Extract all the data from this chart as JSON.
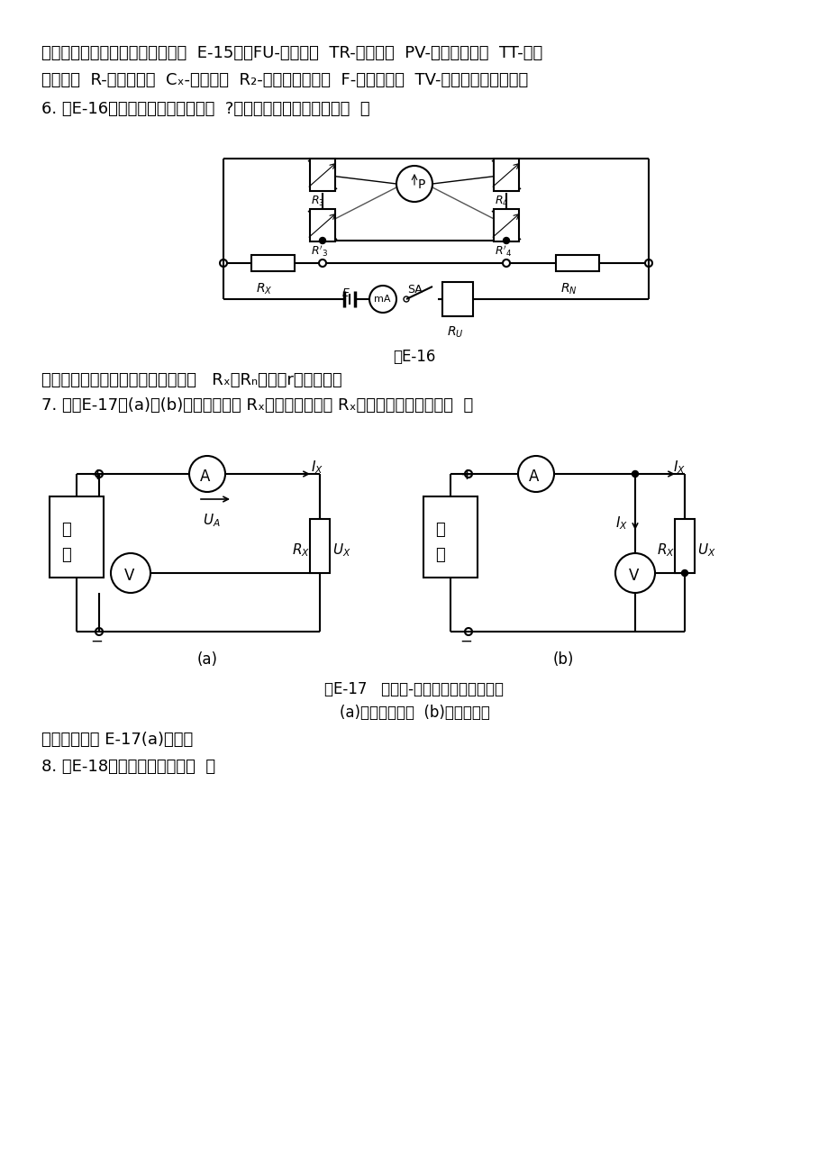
{
  "page_bg": "#ffffff",
  "text_color": "#000000",
  "line_color": "#000000",
  "fig_width": 9.2,
  "fig_height": 13.03,
  "para1_line1": "答案：是交流耐压原理接线图。图  E-15中：FU-熔断器；  TR-调压器；  PV-试验电压表；  TT-试验",
  "para1_line2": "变压器；  R-限流电阻；  Cₓ-被试品；  R₂-限流保护电阻；  F-放电间隙；  TV-测量用电压互感器。",
  "para2": "6. 图E-16是什么仪器的原理接线图  ?图中哪一元件没有注明标号  ？",
  "fig16_caption": "图E-16",
  "answer2": "答案：是双臂电桥原理接线图。图中   Rₓ与Rₙ之间的r没有标出。",
  "para3": "7. 用图E-17中(a)、(b)两种接线测量 Rₓ的直流电阻，当 Rₓ较大时，采用哪种接线  ？",
  "fig17_caption": "图E-17   电压表-电流表法测量直流电阻",
  "fig17_sub": "(a)电压表前接；  (b)电压表后接",
  "answer3": "答案：采用图 E-17(a)接线。",
  "para4": "8. 图E-18接线测量什么物理量  ？"
}
